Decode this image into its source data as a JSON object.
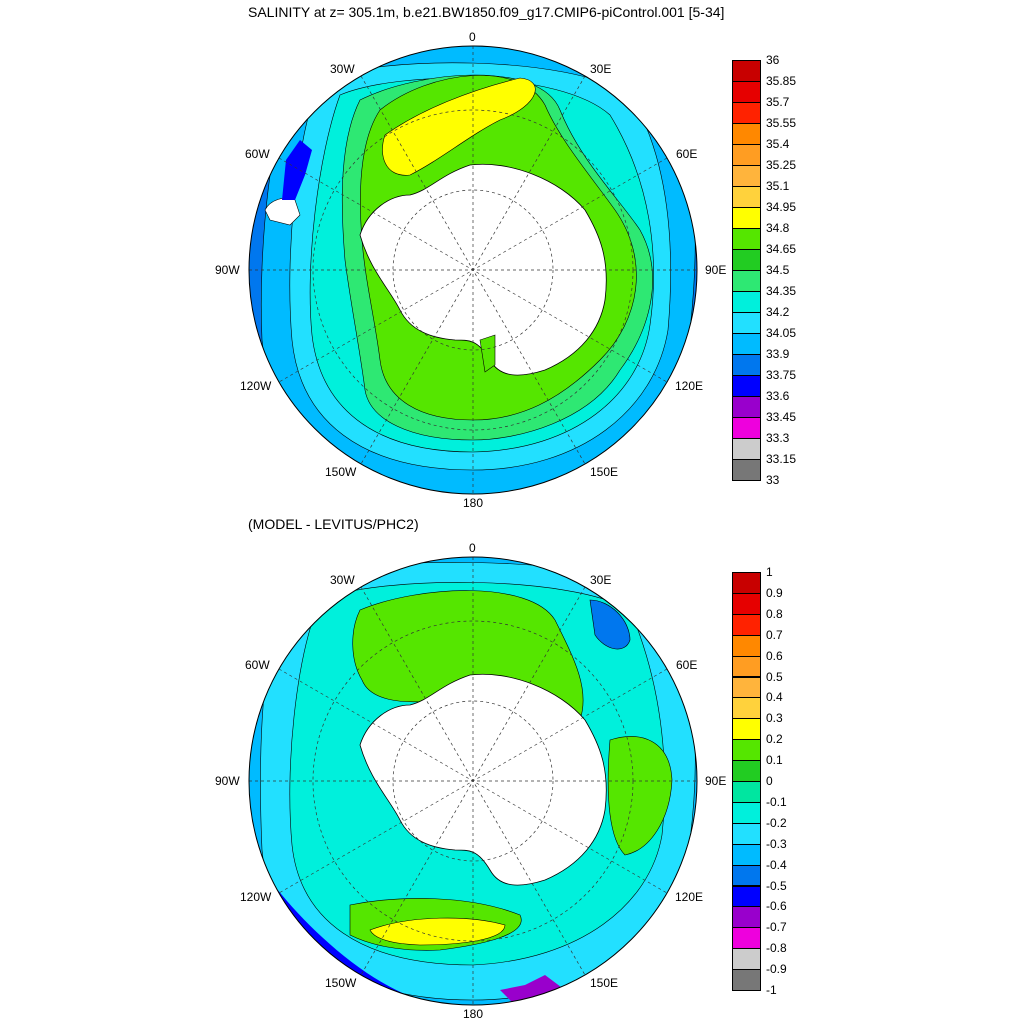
{
  "titles": {
    "top": "SALINITY at z= 305.1m, b.e21.BW1850.f09_g17.CMIP6-piControl.001 [5-34]",
    "bottom": "(MODEL - LEVITUS/PHC2)"
  },
  "lon_labels": {
    "l0": "0",
    "l30e": "30E",
    "l60e": "60E",
    "l90e": "90E",
    "l120e": "120E",
    "l150e": "150E",
    "l180": "180",
    "l150w": "150W",
    "l120w": "120W",
    "l90w": "90W",
    "l60w": "60W",
    "l30w": "30W"
  },
  "colorbar_top": {
    "labels": [
      "36",
      "35.85",
      "35.7",
      "35.55",
      "35.4",
      "35.25",
      "35.1",
      "34.95",
      "34.8",
      "34.65",
      "34.5",
      "34.35",
      "34.2",
      "34.05",
      "33.9",
      "33.75",
      "33.6",
      "33.45",
      "33.3",
      "33.15",
      "33"
    ],
    "colors": [
      "#c80000",
      "#e60000",
      "#ff2200",
      "#ff8800",
      "#ff9d22",
      "#ffb43c",
      "#ffd23c",
      "#ffff00",
      "#55e600",
      "#22cc22",
      "#2ee873",
      "#00f0dc",
      "#22e0ff",
      "#00bbff",
      "#0077ee",
      "#0000ff",
      "#9900cc",
      "#ee00dd",
      "#cccccc",
      "#777777"
    ]
  },
  "colorbar_bottom": {
    "labels": [
      "1",
      "0.9",
      "0.8",
      "0.7",
      "0.6",
      "0.5",
      "0.4",
      "0.3",
      "0.2",
      "0.1",
      "0",
      "-0.1",
      "-0.2",
      "-0.3",
      "-0.4",
      "-0.5",
      "-0.6",
      "-0.7",
      "-0.8",
      "-0.9",
      "-1"
    ],
    "colors": [
      "#c80000",
      "#e60000",
      "#ff2200",
      "#ff8800",
      "#ff9d22",
      "#ffb43c",
      "#ffd23c",
      "#ffff00",
      "#55e600",
      "#22cc22",
      "#00e6a0",
      "#00f0dc",
      "#22e0ff",
      "#00bbff",
      "#0077ee",
      "#0000ff",
      "#9900cc",
      "#ee00dd",
      "#cccccc",
      "#777777"
    ]
  },
  "palette": {
    "antarctica": "#ffffff",
    "coast": "#000000"
  }
}
